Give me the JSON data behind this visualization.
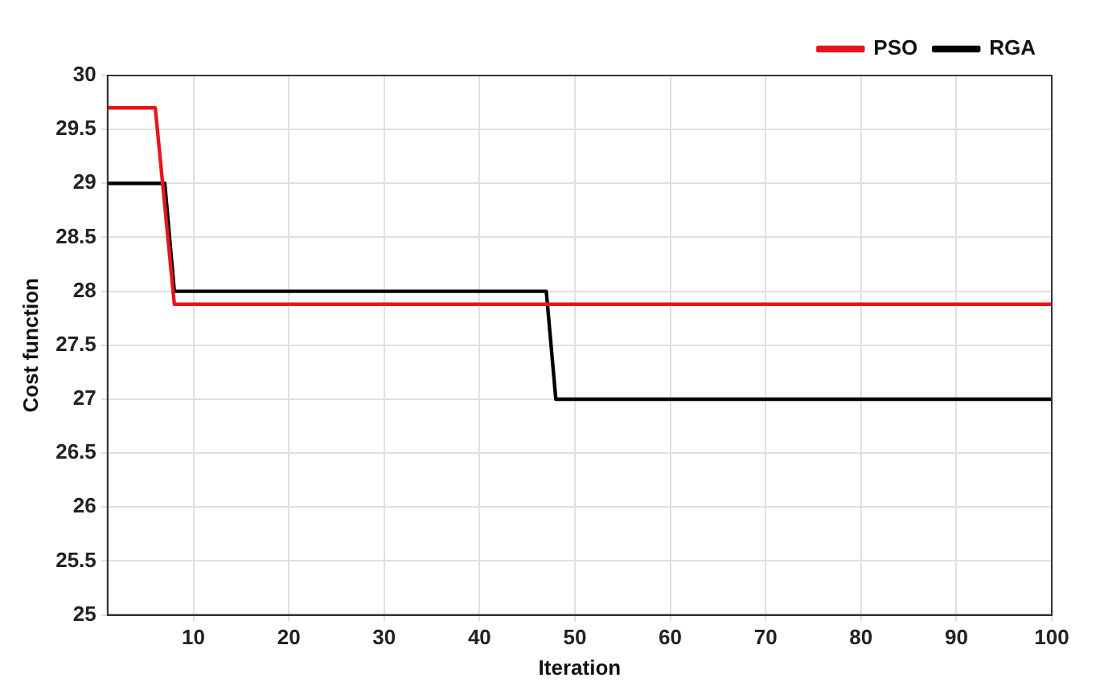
{
  "chart_data": {
    "type": "line",
    "xlabel": "Iteration",
    "ylabel": "Cost function",
    "xlim": [
      1,
      100
    ],
    "xticks": [
      10,
      20,
      30,
      40,
      50,
      60,
      70,
      80,
      90,
      100
    ],
    "ylim": [
      25,
      30
    ],
    "yticks": [
      25,
      25.5,
      26,
      26.5,
      27,
      27.5,
      28,
      28.5,
      29,
      29.5,
      30
    ],
    "grid": true,
    "legend": "top right",
    "marker": "none",
    "line_style": "solid",
    "series": [
      {
        "name": "PSO",
        "color": "#e8141c",
        "x": [
          1,
          6,
          8,
          100
        ],
        "values": [
          29.7,
          29.7,
          27.88,
          27.88
        ]
      },
      {
        "name": "RGA",
        "color": "#000000",
        "x": [
          1,
          7,
          8,
          47,
          48,
          100
        ],
        "values": [
          29,
          29,
          28,
          28,
          27,
          27
        ]
      }
    ]
  }
}
